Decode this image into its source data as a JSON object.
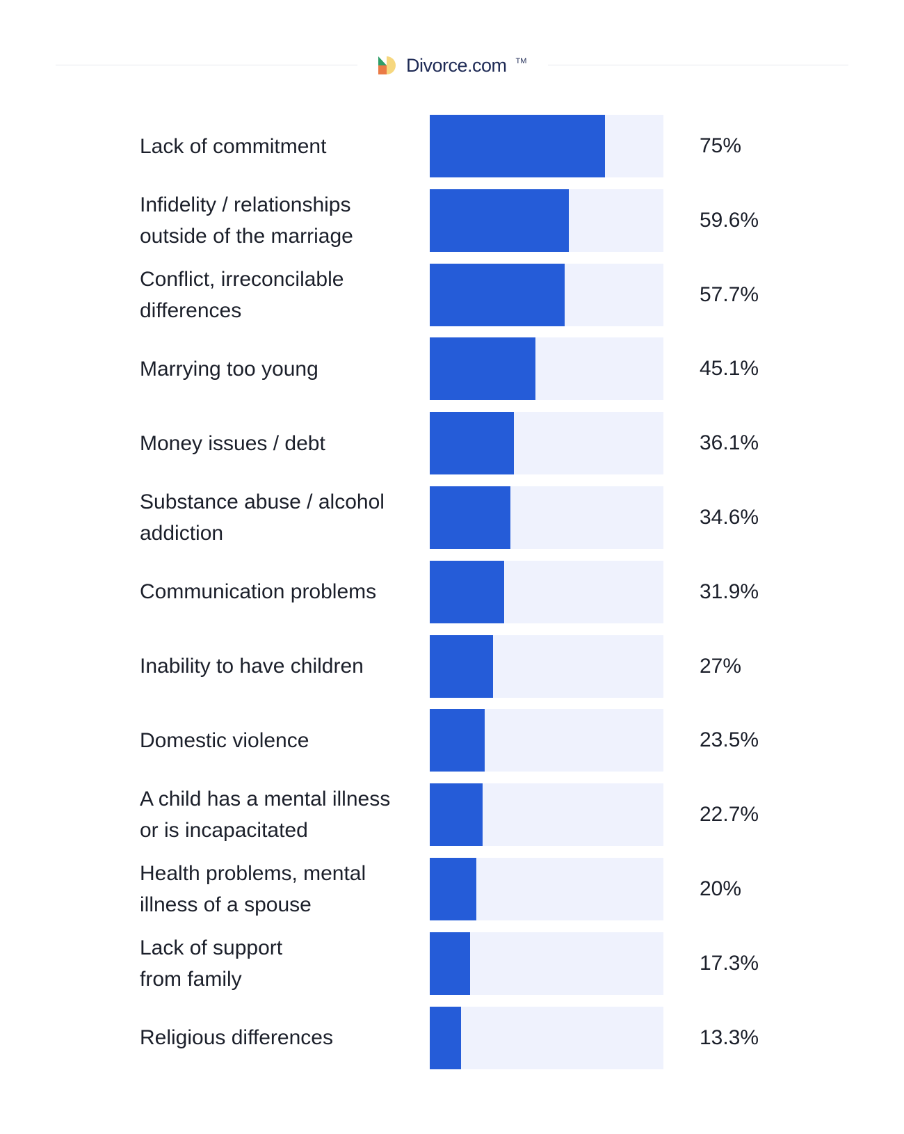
{
  "brand": {
    "name": "Divorce.com",
    "trademark": "TM",
    "logo_colors": [
      "#2f9e68",
      "#f6d77e",
      "#ea7a45"
    ]
  },
  "colors": {
    "bar": "#255cd8",
    "track": "#eff2fd",
    "text": "#1b1f2a"
  },
  "chart_data": {
    "type": "bar",
    "orientation": "horizontal",
    "title": "",
    "xlabel": "",
    "ylabel": "",
    "xlim": [
      0,
      100
    ],
    "grid": false,
    "legend": "none",
    "categories": [
      "Lack of commitment",
      "Infidelity / relationships\noutside of the marriage",
      "Conflict, irreconcilable\ndifferences",
      "Marrying too young",
      "Money issues / debt",
      "Substance abuse / alcohol\naddiction",
      "Communication problems",
      "Inability to have children",
      "Domestic violence",
      "A child has a mental illness\nor is incapacitated",
      "Health problems, mental\nillness of a spouse",
      "Lack of support\nfrom family",
      "Religious differences"
    ],
    "values": [
      75,
      59.6,
      57.7,
      45.1,
      36.1,
      34.6,
      31.9,
      27,
      23.5,
      22.7,
      20,
      17.3,
      13.3
    ],
    "value_labels": [
      "75%",
      "59.6%",
      "57.7%",
      "45.1%",
      "36.1%",
      "34.6%",
      "31.9%",
      "27%",
      "23.5%",
      "22.7%",
      "20%",
      "17.3%",
      "13.3%"
    ]
  }
}
